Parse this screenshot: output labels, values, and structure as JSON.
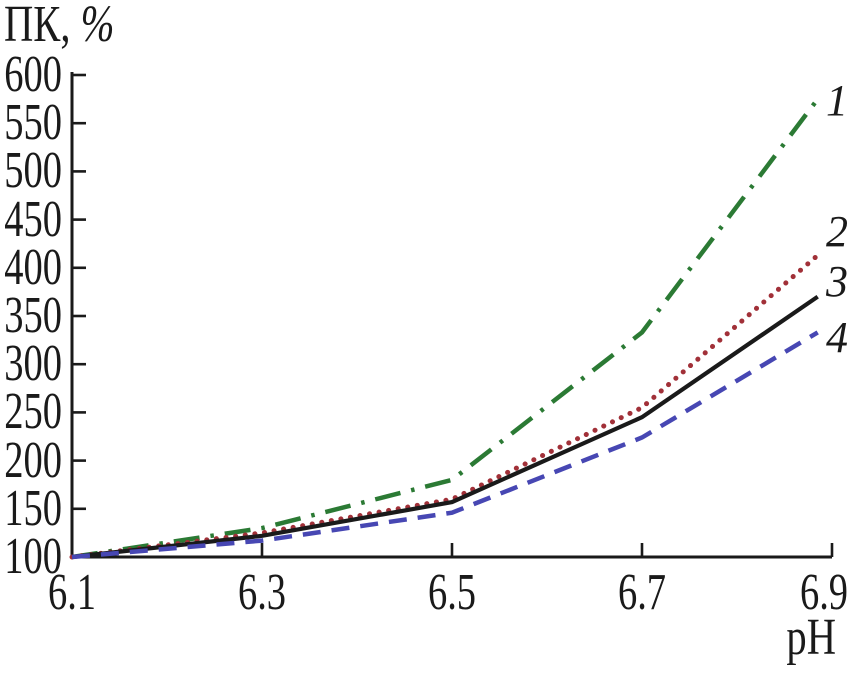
{
  "chart_data": {
    "type": "line",
    "title": "",
    "ylabel": "ПК, %",
    "ylabel_text": "ПК,",
    "ylabel_unit": "%",
    "xlabel": "pH",
    "x": [
      6.1,
      6.3,
      6.5,
      6.7,
      6.9
    ],
    "xlim": [
      6.1,
      6.9
    ],
    "ylim": [
      100,
      600
    ],
    "y_ticks": [
      100,
      150,
      200,
      250,
      300,
      350,
      400,
      450,
      500,
      550,
      600
    ],
    "x_tick_labels": [
      "6.1",
      "6.3",
      "6.5",
      "6.7",
      "6.9"
    ],
    "grid": false,
    "legend_position": "curve-end-numbers-right",
    "curve_end_x": 6.885,
    "series": [
      {
        "label": "1",
        "color": "#2b7a34",
        "style": "dash-dot",
        "values": [
          100,
          130,
          180,
          333,
          575
        ]
      },
      {
        "label": "2",
        "color": "#a13038",
        "style": "dotted",
        "values": [
          100,
          125,
          160,
          255,
          413
        ]
      },
      {
        "label": "3",
        "color": "#1a1a1a",
        "style": "solid",
        "values": [
          100,
          122,
          157,
          245,
          370
        ]
      },
      {
        "label": "4",
        "color": "#4747b3",
        "style": "dashed",
        "values": [
          100,
          117,
          146,
          224,
          333
        ]
      }
    ]
  },
  "colors": {
    "text": "#1a1a1a",
    "axis": "#1a1a1a",
    "background": "#ffffff"
  }
}
